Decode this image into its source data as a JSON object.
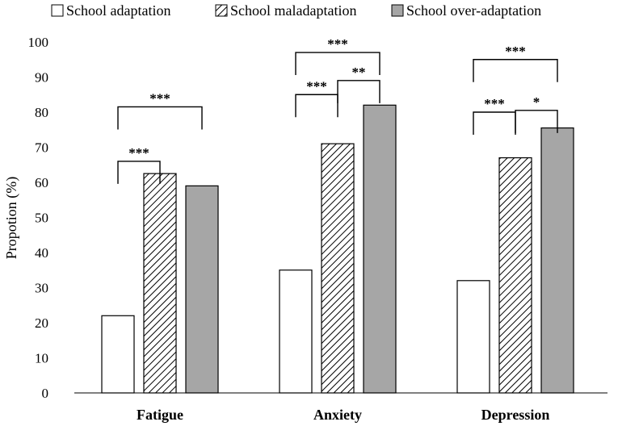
{
  "chart_data": {
    "type": "bar",
    "title": "",
    "xlabel": "",
    "ylabel": "Propotion (%)",
    "ylim": [
      0,
      100
    ],
    "yticks": [
      0,
      10,
      20,
      30,
      40,
      50,
      60,
      70,
      80,
      90,
      100
    ],
    "categories": [
      "Fatigue",
      "Anxiety",
      "Depression"
    ],
    "series": [
      {
        "name": "School adaptation",
        "style": "white",
        "values": [
          22,
          35,
          32
        ]
      },
      {
        "name": "School maladaptation",
        "style": "hatched",
        "values": [
          62.5,
          71,
          67
        ]
      },
      {
        "name": "School over-adaptation",
        "style": "gray",
        "values": [
          59,
          82,
          75.5
        ]
      }
    ],
    "legend": {
      "position": "top"
    },
    "significance": [
      {
        "category": "Fatigue",
        "from": "School adaptation",
        "to": "School maladaptation",
        "label": "***",
        "level": 66
      },
      {
        "category": "Fatigue",
        "from": "School adaptation",
        "to": "School over-adaptation",
        "label": "***",
        "level": 81.5
      },
      {
        "category": "Anxiety",
        "from": "School adaptation",
        "to": "School maladaptation",
        "label": "***",
        "level": 85
      },
      {
        "category": "Anxiety",
        "from": "School maladaptation",
        "to": "School over-adaptation",
        "label": "**",
        "level": 89
      },
      {
        "category": "Anxiety",
        "from": "School adaptation",
        "to": "School over-adaptation",
        "label": "***",
        "level": 97
      },
      {
        "category": "Depression",
        "from": "School adaptation",
        "to": "School maladaptation",
        "label": "***",
        "level": 80
      },
      {
        "category": "Depression",
        "from": "School maladaptation",
        "to": "School over-adaptation",
        "label": "*",
        "level": 80.5
      },
      {
        "category": "Depression",
        "from": "School adaptation",
        "to": "School over-adaptation",
        "label": "***",
        "level": 95
      }
    ],
    "colors": {
      "white": "#ffffff",
      "gray": "#a6a6a6",
      "stroke": "#000000"
    }
  }
}
